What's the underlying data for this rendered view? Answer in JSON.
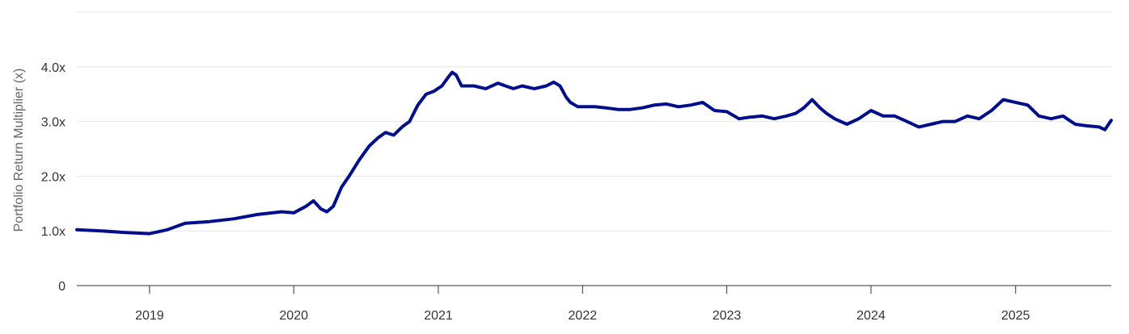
{
  "chart_data": {
    "type": "line",
    "ylabel": "Portfolio Return Multiplier (x)",
    "xlim": [
      "2018-07-01",
      "2025-08-31"
    ],
    "ylim": [
      0,
      5
    ],
    "y_ticks": [
      {
        "value": 0,
        "label": "0"
      },
      {
        "value": 1,
        "label": "1.0x"
      },
      {
        "value": 2,
        "label": "2.0x"
      },
      {
        "value": 3,
        "label": "3.0x"
      },
      {
        "value": 4,
        "label": "4.0x"
      }
    ],
    "grid_y_values": [
      1,
      2,
      3,
      4,
      5
    ],
    "x_ticks": [
      {
        "value": "2019-01-01",
        "label": "2019"
      },
      {
        "value": "2020-01-01",
        "label": "2020"
      },
      {
        "value": "2021-01-01",
        "label": "2021"
      },
      {
        "value": "2022-01-01",
        "label": "2022"
      },
      {
        "value": "2023-01-01",
        "label": "2023"
      },
      {
        "value": "2024-01-01",
        "label": "2024"
      },
      {
        "value": "2025-01-01",
        "label": "2025"
      }
    ],
    "grid": true,
    "legend": "none",
    "series": [
      {
        "color": "#000e8c",
        "x": [
          "2018-07-01",
          "2018-09-01",
          "2018-11-01",
          "2018-12-01",
          "2019-01-01",
          "2019-02-15",
          "2019-04-01",
          "2019-06-01",
          "2019-08-01",
          "2019-10-01",
          "2019-12-01",
          "2020-01-01",
          "2020-02-01",
          "2020-02-20",
          "2020-03-10",
          "2020-03-25",
          "2020-04-10",
          "2020-05-01",
          "2020-05-20",
          "2020-06-15",
          "2020-07-10",
          "2020-08-01",
          "2020-08-20",
          "2020-09-10",
          "2020-10-01",
          "2020-10-20",
          "2020-11-10",
          "2020-12-01",
          "2020-12-20",
          "2021-01-10",
          "2021-01-25",
          "2021-02-05",
          "2021-02-15",
          "2021-03-01",
          "2021-04-01",
          "2021-05-01",
          "2021-06-01",
          "2021-06-20",
          "2021-07-10",
          "2021-08-01",
          "2021-09-01",
          "2021-10-01",
          "2021-10-20",
          "2021-11-05",
          "2021-11-20",
          "2021-12-01",
          "2021-12-20",
          "2022-01-10",
          "2022-02-01",
          "2022-03-01",
          "2022-04-01",
          "2022-05-01",
          "2022-06-01",
          "2022-07-01",
          "2022-08-01",
          "2022-09-01",
          "2022-10-01",
          "2022-11-01",
          "2022-12-01",
          "2023-01-01",
          "2023-02-01",
          "2023-03-01",
          "2023-04-01",
          "2023-05-01",
          "2023-06-01",
          "2023-06-25",
          "2023-07-15",
          "2023-08-05",
          "2023-08-25",
          "2023-09-10",
          "2023-10-01",
          "2023-11-01",
          "2023-12-01",
          "2024-01-01",
          "2024-02-01",
          "2024-03-01",
          "2024-04-01",
          "2024-05-01",
          "2024-06-01",
          "2024-07-01",
          "2024-08-01",
          "2024-09-01",
          "2024-10-01",
          "2024-11-01",
          "2024-12-01",
          "2025-01-01",
          "2025-02-01",
          "2025-03-01",
          "2025-04-01",
          "2025-05-01",
          "2025-06-01",
          "2025-07-01",
          "2025-08-01",
          "2025-08-15",
          "2025-08-31"
        ],
        "values": [
          1.02,
          1.0,
          0.97,
          0.96,
          0.95,
          1.02,
          1.14,
          1.17,
          1.22,
          1.3,
          1.35,
          1.33,
          1.45,
          1.55,
          1.4,
          1.35,
          1.45,
          1.8,
          2.0,
          2.3,
          2.55,
          2.7,
          2.8,
          2.75,
          2.9,
          3.0,
          3.3,
          3.5,
          3.55,
          3.65,
          3.8,
          3.9,
          3.85,
          3.65,
          3.65,
          3.6,
          3.7,
          3.65,
          3.6,
          3.65,
          3.6,
          3.65,
          3.72,
          3.65,
          3.45,
          3.35,
          3.27,
          3.27,
          3.27,
          3.25,
          3.22,
          3.22,
          3.25,
          3.3,
          3.32,
          3.27,
          3.3,
          3.35,
          3.2,
          3.18,
          3.05,
          3.08,
          3.1,
          3.05,
          3.1,
          3.15,
          3.25,
          3.4,
          3.25,
          3.15,
          3.05,
          2.95,
          3.05,
          3.2,
          3.1,
          3.1,
          3.0,
          2.9,
          2.95,
          3.0,
          3.0,
          3.1,
          3.05,
          3.2,
          3.4,
          3.35,
          3.3,
          3.1,
          3.05,
          3.1,
          2.95,
          2.92,
          2.9,
          2.85,
          3.02
        ]
      }
    ]
  }
}
